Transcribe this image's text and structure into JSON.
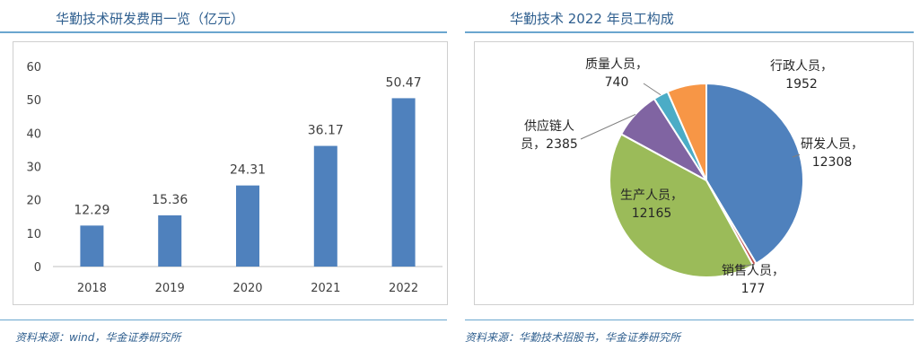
{
  "left": {
    "title": "华勤技术研发费用一览（亿元）",
    "source": "资料来源：wind，华金证券研究所"
  },
  "right": {
    "title": "华勤技术 2022 年员工构成",
    "source": "资料来源：华勤技术招股书，华金证券研究所"
  },
  "chart_data": [
    {
      "type": "bar",
      "title": "华勤技术研发费用一览（亿元）",
      "categories": [
        "2018",
        "2019",
        "2020",
        "2021",
        "2022"
      ],
      "values": [
        12.29,
        15.36,
        24.31,
        36.17,
        50.47
      ],
      "data_labels": [
        "12.29",
        "15.36",
        "24.31",
        "36.17",
        "50.47"
      ],
      "yticks": [
        "0",
        "10",
        "20",
        "30",
        "40",
        "50",
        "60"
      ],
      "ylim": [
        0,
        60
      ],
      "grid": false,
      "bar_color": "#4f81bd"
    },
    {
      "type": "pie",
      "title": "华勤技术 2022 年员工构成",
      "slices": [
        {
          "label": "研发人员",
          "value": 12308,
          "value_text": "12308",
          "color": "#4f81bd"
        },
        {
          "label": "销售人员",
          "value": 177,
          "value_text": "177",
          "color": "#c0504d"
        },
        {
          "label": "生产人员",
          "value": 12165,
          "value_text": "12165",
          "color": "#9bbb59"
        },
        {
          "label": "供应链人员",
          "value": 2385,
          "value_text": "2385",
          "color": "#8064a2"
        },
        {
          "label": "质量人员",
          "value": 740,
          "value_text": "740",
          "color": "#4bacc6"
        },
        {
          "label": "行政人员",
          "value": 1952,
          "value_text": "1952",
          "color": "#f79646"
        }
      ]
    }
  ]
}
